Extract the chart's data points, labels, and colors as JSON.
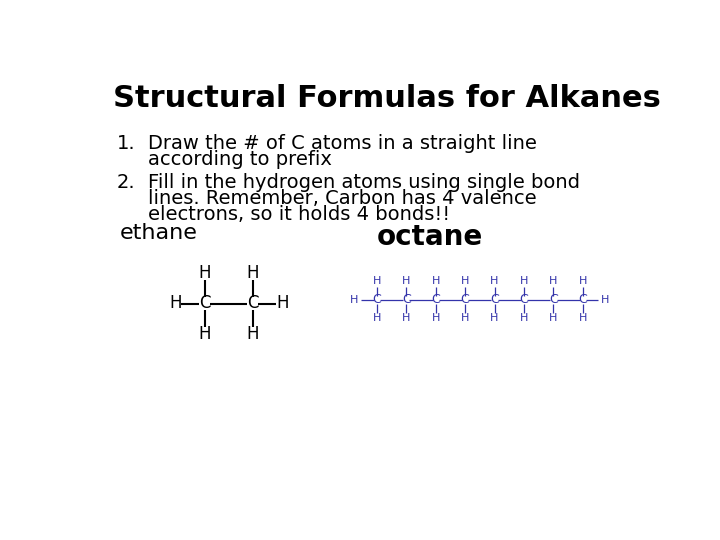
{
  "title": "Structural Formulas for Alkanes",
  "title_fontsize": 22,
  "title_fontweight": "bold",
  "background_color": "#ffffff",
  "text_color": "#000000",
  "ethane_color": "#000000",
  "octane_color": "#3333aa",
  "bullet1_line1": "Draw the # of C atoms in a straight line",
  "bullet1_line2": "according to prefix",
  "bullet2_line1": "Fill in the hydrogen atoms using single bond",
  "bullet2_line2": "lines. Remember, Carbon has 4 valence",
  "bullet2_line3": "electrons, so it holds 4 bonds!!",
  "label_ethane": "ethane",
  "label_octane": "octane",
  "label_ethane_fontsize": 16,
  "label_octane_fontsize": 20,
  "ethane_mol_fontsize": 12,
  "octane_mol_fontsize": 8,
  "bullet_fontsize": 14,
  "num_fontsize": 14
}
